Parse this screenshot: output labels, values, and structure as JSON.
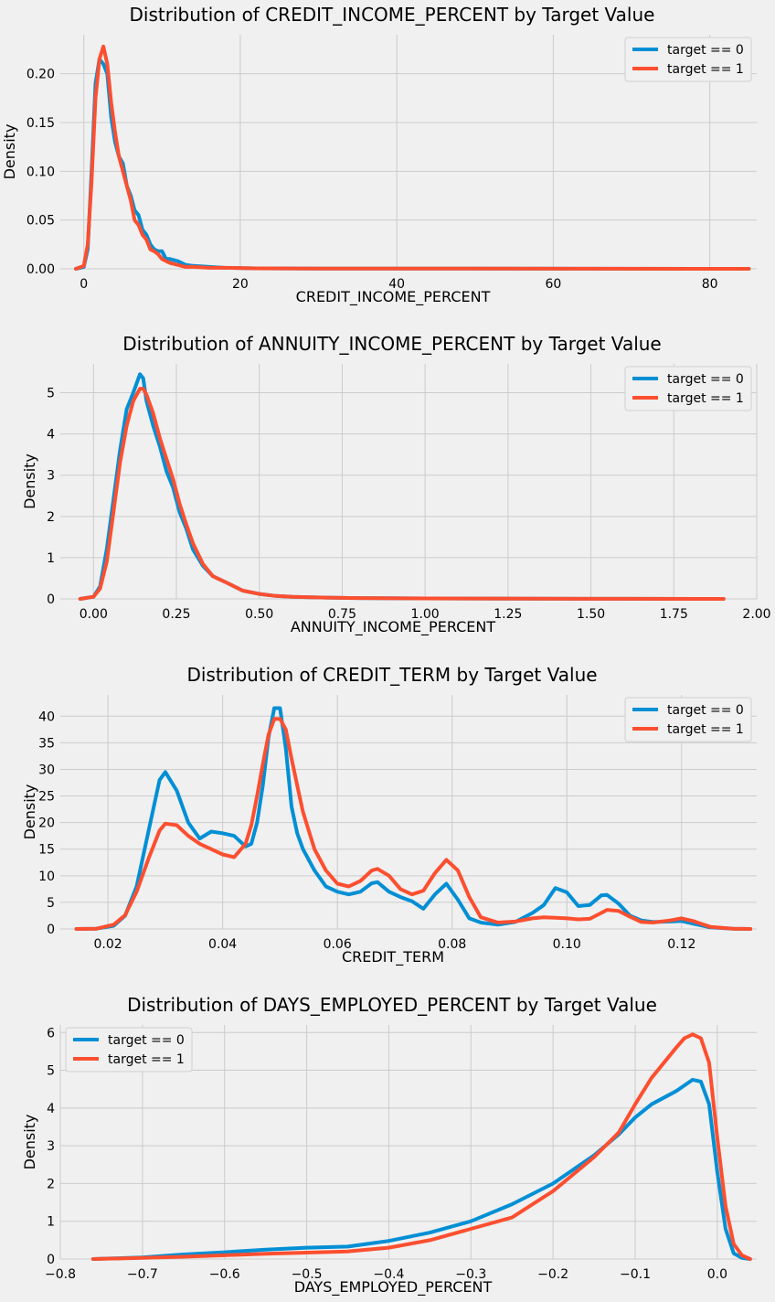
{
  "chart_data": [
    {
      "type": "line",
      "title": "Distribution of CREDIT_INCOME_PERCENT by Target Value",
      "xlabel": "CREDIT_INCOME_PERCENT",
      "ylabel": "Density",
      "xlim": [
        -3,
        86
      ],
      "ylim": [
        0,
        0.24
      ],
      "xticks": [
        0,
        20,
        40,
        60,
        80
      ],
      "xtick_labels": [
        "0",
        "20",
        "40",
        "60",
        "80"
      ],
      "yticks": [
        0,
        0.05,
        0.1,
        0.15,
        0.2
      ],
      "ytick_labels": [
        "0.00",
        "0.05",
        "0.10",
        "0.15",
        "0.20"
      ],
      "grid": true,
      "legend_position": "top-right",
      "series": [
        {
          "name": "target == 0",
          "color": "#008fd5",
          "x": [
            -1,
            0,
            0.5,
            1,
            1.5,
            2,
            2.5,
            3,
            3.5,
            4,
            4.5,
            5,
            5.5,
            6,
            6.5,
            7,
            7.5,
            8,
            8.5,
            9,
            9.5,
            10,
            10.5,
            11,
            12,
            13,
            14,
            16,
            18,
            22,
            30,
            50,
            85
          ],
          "y": [
            0,
            0.002,
            0.02,
            0.1,
            0.19,
            0.215,
            0.21,
            0.2,
            0.155,
            0.13,
            0.115,
            0.108,
            0.085,
            0.075,
            0.06,
            0.055,
            0.04,
            0.035,
            0.025,
            0.02,
            0.018,
            0.018,
            0.01,
            0.01,
            0.008,
            0.004,
            0.003,
            0.002,
            0.001,
            0.0005,
            0.0003,
            0.0002,
            0
          ]
        },
        {
          "name": "target == 1",
          "color": "#fc4f30",
          "x": [
            -1,
            0,
            0.5,
            1,
            1.5,
            2,
            2.5,
            3,
            3.5,
            4,
            4.5,
            5,
            5.5,
            6,
            6.5,
            7,
            7.5,
            8,
            8.5,
            9,
            9.5,
            10,
            10.5,
            11,
            12,
            13,
            14,
            16,
            18,
            22,
            30,
            50,
            85
          ],
          "y": [
            0,
            0.003,
            0.025,
            0.09,
            0.175,
            0.215,
            0.228,
            0.21,
            0.17,
            0.14,
            0.115,
            0.1,
            0.085,
            0.07,
            0.05,
            0.045,
            0.035,
            0.03,
            0.02,
            0.018,
            0.015,
            0.01,
            0.008,
            0.006,
            0.004,
            0.002,
            0.002,
            0.001,
            0.001,
            0.0005,
            0.0003,
            0.0002,
            0
          ]
        }
      ]
    },
    {
      "type": "line",
      "title": "Distribution of ANNUITY_INCOME_PERCENT by Target Value",
      "xlabel": "ANNUITY_INCOME_PERCENT",
      "ylabel": "Density",
      "xlim": [
        -0.1,
        2.0
      ],
      "ylim": [
        0,
        5.7
      ],
      "xticks": [
        0,
        0.25,
        0.5,
        0.75,
        1.0,
        1.25,
        1.5,
        1.75,
        2.0
      ],
      "xtick_labels": [
        "0.00",
        "0.25",
        "0.50",
        "0.75",
        "1.00",
        "1.25",
        "1.50",
        "1.75",
        "2.00"
      ],
      "yticks": [
        0,
        1,
        2,
        3,
        4,
        5
      ],
      "ytick_labels": [
        "0",
        "1",
        "2",
        "3",
        "4",
        "5"
      ],
      "grid": true,
      "legend_position": "top-right",
      "series": [
        {
          "name": "target == 0",
          "color": "#008fd5",
          "x": [
            -0.04,
            0,
            0.02,
            0.04,
            0.06,
            0.08,
            0.1,
            0.12,
            0.14,
            0.15,
            0.16,
            0.18,
            0.2,
            0.22,
            0.24,
            0.26,
            0.28,
            0.3,
            0.33,
            0.36,
            0.4,
            0.45,
            0.5,
            0.55,
            0.6,
            0.7,
            0.8,
            1.0,
            1.3,
            1.6,
            1.9
          ],
          "y": [
            0,
            0.05,
            0.3,
            1.2,
            2.4,
            3.6,
            4.6,
            5.0,
            5.45,
            5.35,
            4.8,
            4.2,
            3.7,
            3.1,
            2.7,
            2.1,
            1.7,
            1.2,
            0.8,
            0.55,
            0.4,
            0.2,
            0.12,
            0.07,
            0.05,
            0.03,
            0.02,
            0.01,
            0.005,
            0.002,
            0
          ]
        },
        {
          "name": "target == 1",
          "color": "#fc4f30",
          "x": [
            -0.04,
            0,
            0.02,
            0.04,
            0.06,
            0.08,
            0.1,
            0.12,
            0.14,
            0.15,
            0.16,
            0.18,
            0.2,
            0.22,
            0.24,
            0.26,
            0.28,
            0.3,
            0.33,
            0.36,
            0.4,
            0.45,
            0.5,
            0.55,
            0.6,
            0.7,
            0.8,
            1.0,
            1.3,
            1.6,
            1.9
          ],
          "y": [
            0,
            0.05,
            0.25,
            0.9,
            2.1,
            3.3,
            4.2,
            4.8,
            5.1,
            5.1,
            4.95,
            4.5,
            3.9,
            3.4,
            2.9,
            2.3,
            1.8,
            1.35,
            0.85,
            0.55,
            0.4,
            0.2,
            0.12,
            0.07,
            0.05,
            0.03,
            0.02,
            0.01,
            0.005,
            0.002,
            0
          ]
        }
      ]
    },
    {
      "type": "line",
      "title": "Distribution of CREDIT_TERM by Target Value",
      "xlabel": "CREDIT_TERM",
      "ylabel": "Density",
      "xlim": [
        0.0117,
        0.1331
      ],
      "ylim": [
        0,
        44
      ],
      "xticks": [
        0.02,
        0.04,
        0.06,
        0.08,
        0.1,
        0.12
      ],
      "xtick_labels": [
        "0.02",
        "0.04",
        "0.06",
        "0.08",
        "0.10",
        "0.12"
      ],
      "yticks": [
        0,
        5,
        10,
        15,
        20,
        25,
        30,
        35,
        40
      ],
      "ytick_labels": [
        "0",
        "5",
        "10",
        "15",
        "20",
        "25",
        "30",
        "35",
        "40"
      ],
      "grid": true,
      "legend_position": "top-right",
      "series": [
        {
          "name": "target == 0",
          "color": "#008fd5",
          "x": [
            0.0145,
            0.018,
            0.021,
            0.023,
            0.025,
            0.027,
            0.029,
            0.03,
            0.032,
            0.034,
            0.036,
            0.038,
            0.04,
            0.042,
            0.044,
            0.045,
            0.046,
            0.047,
            0.048,
            0.049,
            0.05,
            0.051,
            0.052,
            0.053,
            0.054,
            0.056,
            0.058,
            0.06,
            0.062,
            0.064,
            0.066,
            0.067,
            0.069,
            0.071,
            0.073,
            0.075,
            0.077,
            0.079,
            0.081,
            0.083,
            0.085,
            0.088,
            0.091,
            0.094,
            0.096,
            0.098,
            0.1,
            0.102,
            0.104,
            0.106,
            0.107,
            0.109,
            0.111,
            0.113,
            0.115,
            0.118,
            0.12,
            0.122,
            0.125,
            0.129,
            0.132
          ],
          "y": [
            0,
            0.05,
            0.6,
            2.5,
            8,
            18,
            28,
            29.5,
            26,
            20,
            17,
            18.3,
            18,
            17.5,
            15.5,
            16,
            20,
            27,
            36,
            41.5,
            41.5,
            34,
            23,
            18,
            15,
            11,
            8,
            7,
            6.5,
            7,
            8.6,
            8.8,
            7,
            6,
            5.2,
            3.8,
            6.5,
            8.5,
            5.5,
            2,
            1.2,
            0.8,
            1.3,
            3,
            4.5,
            7.7,
            6.9,
            4.3,
            4.5,
            6.3,
            6.4,
            4.8,
            2.5,
            1.6,
            1.3,
            1.4,
            1.5,
            1,
            0.3,
            0.05,
            0
          ]
        },
        {
          "name": "target == 1",
          "color": "#fc4f30",
          "x": [
            0.0145,
            0.018,
            0.021,
            0.023,
            0.025,
            0.027,
            0.029,
            0.03,
            0.032,
            0.034,
            0.036,
            0.038,
            0.04,
            0.042,
            0.044,
            0.045,
            0.046,
            0.047,
            0.048,
            0.049,
            0.05,
            0.051,
            0.052,
            0.053,
            0.054,
            0.056,
            0.058,
            0.06,
            0.062,
            0.064,
            0.066,
            0.067,
            0.069,
            0.071,
            0.073,
            0.075,
            0.077,
            0.079,
            0.081,
            0.083,
            0.085,
            0.088,
            0.091,
            0.094,
            0.096,
            0.098,
            0.1,
            0.102,
            0.104,
            0.106,
            0.107,
            0.109,
            0.111,
            0.113,
            0.115,
            0.118,
            0.12,
            0.122,
            0.125,
            0.129,
            0.132
          ],
          "y": [
            0,
            0.05,
            0.8,
            2.6,
            7,
            13,
            18.5,
            19.8,
            19.5,
            17.5,
            16,
            15,
            14,
            13.5,
            16,
            19.5,
            25,
            31,
            36.5,
            39.5,
            39.5,
            37.5,
            32,
            27,
            22,
            15,
            11,
            8.5,
            8,
            9,
            11,
            11.3,
            10,
            7.5,
            6.5,
            7.2,
            10.5,
            13,
            11,
            6,
            2.2,
            1.2,
            1.4,
            2,
            2.2,
            2.1,
            2,
            1.8,
            1.9,
            3,
            3.6,
            3.4,
            2.3,
            1.3,
            1.2,
            1.6,
            2,
            1.5,
            0.4,
            0.05,
            0
          ]
        }
      ]
    },
    {
      "type": "line",
      "title": "Distribution of DAYS_EMPLOYED_PERCENT by Target Value",
      "xlabel": "DAYS_EMPLOYED_PERCENT",
      "ylabel": "Density",
      "xlim": [
        -0.8,
        0.048
      ],
      "ylim": [
        0,
        6.2
      ],
      "xticks": [
        -0.8,
        -0.7,
        -0.6,
        -0.5,
        -0.4,
        -0.3,
        -0.2,
        -0.1,
        0.0
      ],
      "xtick_labels": [
        "−0.8",
        "−0.7",
        "−0.6",
        "−0.5",
        "−0.4",
        "−0.3",
        "−0.2",
        "−0.1",
        "0.0"
      ],
      "yticks": [
        0,
        1,
        2,
        3,
        4,
        5,
        6
      ],
      "ytick_labels": [
        "0",
        "1",
        "2",
        "3",
        "4",
        "5",
        "6"
      ],
      "grid": true,
      "legend_position": "top-left",
      "series": [
        {
          "name": "target == 0",
          "color": "#008fd5",
          "x": [
            -0.76,
            -0.7,
            -0.65,
            -0.6,
            -0.55,
            -0.5,
            -0.45,
            -0.4,
            -0.35,
            -0.3,
            -0.25,
            -0.2,
            -0.15,
            -0.12,
            -0.1,
            -0.08,
            -0.05,
            -0.04,
            -0.03,
            -0.02,
            -0.01,
            0,
            0.01,
            0.02,
            0.03,
            0.04
          ],
          "y": [
            0,
            0.04,
            0.12,
            0.18,
            0.25,
            0.3,
            0.33,
            0.48,
            0.7,
            1.0,
            1.45,
            2.0,
            2.75,
            3.3,
            3.75,
            4.1,
            4.45,
            4.6,
            4.75,
            4.7,
            4.1,
            2.3,
            0.8,
            0.15,
            0.03,
            0
          ]
        },
        {
          "name": "target == 1",
          "color": "#fc4f30",
          "x": [
            -0.76,
            -0.7,
            -0.65,
            -0.6,
            -0.55,
            -0.5,
            -0.45,
            -0.4,
            -0.35,
            -0.3,
            -0.25,
            -0.2,
            -0.15,
            -0.12,
            -0.1,
            -0.08,
            -0.05,
            -0.04,
            -0.03,
            -0.02,
            -0.01,
            0,
            0.01,
            0.02,
            0.03,
            0.04
          ],
          "y": [
            0,
            0.03,
            0.06,
            0.1,
            0.14,
            0.17,
            0.2,
            0.3,
            0.5,
            0.8,
            1.1,
            1.8,
            2.7,
            3.35,
            4.1,
            4.8,
            5.6,
            5.85,
            5.95,
            5.85,
            5.2,
            3.2,
            1.4,
            0.4,
            0.1,
            0
          ]
        }
      ]
    }
  ]
}
